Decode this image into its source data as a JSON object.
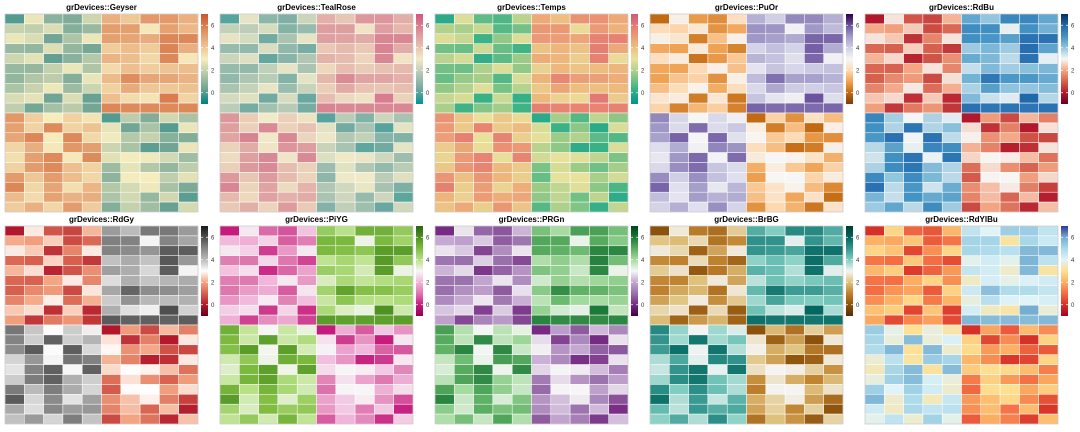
{
  "chart_data": {
    "type": "heatmap",
    "shared": {
      "rows": 20,
      "cols": 10,
      "legend_ticks": [
        "0",
        "2",
        "4",
        "6"
      ],
      "legend_range": [
        -1,
        7
      ],
      "value_model": {
        "description": "20 rows x 10 columns; rows 1-10 lower values in columns 1-5, higher in 6-10; rows 11-20 the reverse",
        "block_means": {
          "top_left": 1.5,
          "top_right": 4.5,
          "bottom_left": 4.5,
          "bottom_right": 1.5
        },
        "noise_range": [
          -1.5,
          1.5
        ],
        "seed": 7
      }
    },
    "panels": [
      {
        "title": "grDevices::Geyser",
        "colors": [
          "#008080",
          "#70A494",
          "#B4C8A8",
          "#F6EDBD",
          "#EDBB8A",
          "#DE8A5A",
          "#CA562C"
        ]
      },
      {
        "title": "grDevices::TealRose",
        "colors": [
          "#009392",
          "#72AAA1",
          "#B1C7B3",
          "#F1EAC8",
          "#E5B9AD",
          "#D98994",
          "#D0587E"
        ]
      },
      {
        "title": "grDevices::Temps",
        "colors": [
          "#009392",
          "#39B185",
          "#9CCB86",
          "#E9E29C",
          "#EEB479",
          "#E88471",
          "#CF597E"
        ]
      },
      {
        "title": "grDevices::PuOr",
        "colors": [
          "#7F3B08",
          "#C26A12",
          "#F0A253",
          "#FDDAB4",
          "#F7F7F7",
          "#D0CFE6",
          "#A39CC8",
          "#6A529E",
          "#2D004B"
        ]
      },
      {
        "title": "grDevices::RdBu",
        "colors": [
          "#67001F",
          "#B2182B",
          "#D6604D",
          "#F4A582",
          "#F7F7F7",
          "#92C5DE",
          "#4393C3",
          "#2166AC",
          "#053061"
        ]
      },
      {
        "title": "grDevices::RdGy",
        "colors": [
          "#67001F",
          "#B2182B",
          "#D6604D",
          "#F4A582",
          "#FFFFFF",
          "#BABABA",
          "#878787",
          "#4D4D4D",
          "#1A1A1A"
        ]
      },
      {
        "title": "grDevices::PiYG",
        "colors": [
          "#8E0152",
          "#C51B7D",
          "#DE77AE",
          "#F1B6DA",
          "#F7F7F7",
          "#B8E186",
          "#7FBC41",
          "#4D9221",
          "#276419"
        ]
      },
      {
        "title": "grDevices::PRGn",
        "colors": [
          "#40004B",
          "#762A83",
          "#9970AB",
          "#C2A5CF",
          "#F7F7F7",
          "#A6DBA0",
          "#5AAE61",
          "#1B7837",
          "#00441B"
        ]
      },
      {
        "title": "grDevices::BrBG",
        "colors": [
          "#543005",
          "#8C510A",
          "#BF812D",
          "#DFC27D",
          "#F5F5F5",
          "#80CDC1",
          "#35978F",
          "#01665E",
          "#003C30"
        ]
      },
      {
        "title": "grDevices::RdYlBu",
        "colors": [
          "#A50026",
          "#D73027",
          "#F46D43",
          "#FDAE61",
          "#FEE090",
          "#E0F3F8",
          "#ABD9E9",
          "#74ADD1",
          "#313695"
        ]
      }
    ]
  }
}
